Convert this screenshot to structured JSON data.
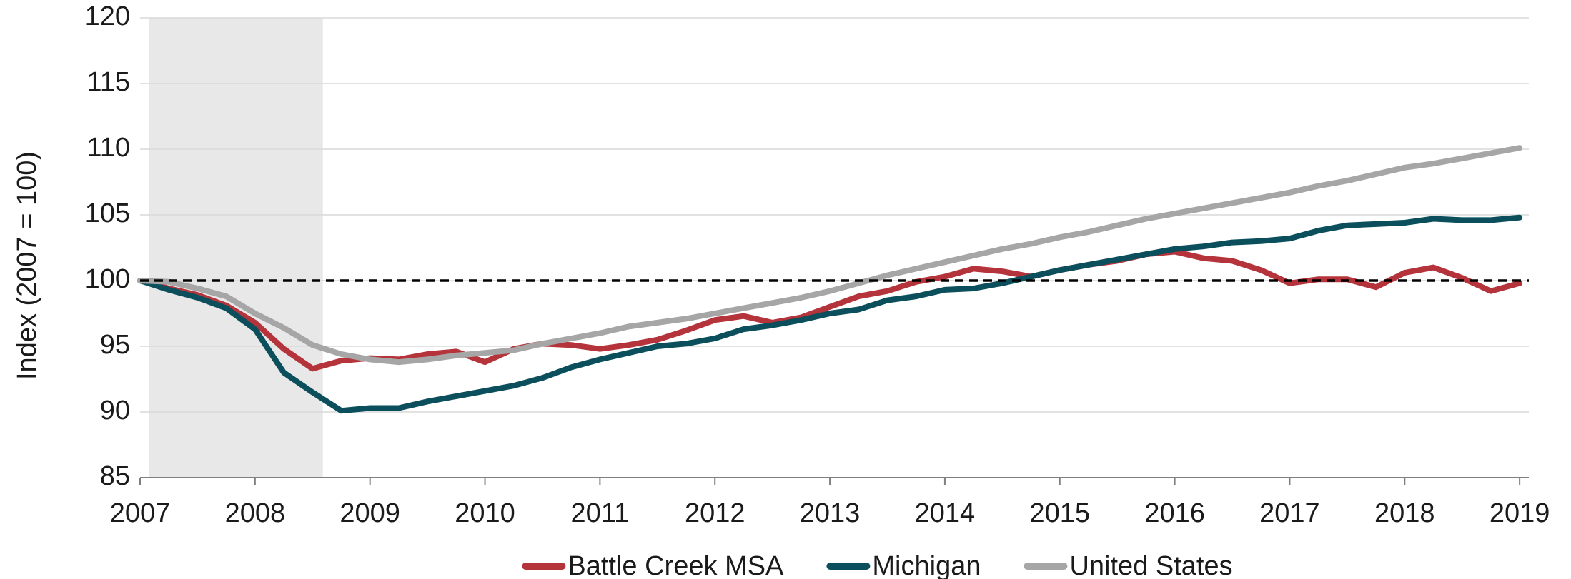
{
  "chart_data": {
    "type": "line",
    "y_label": "Index (2007 = 100)",
    "x": [
      2007,
      2007.25,
      2007.5,
      2007.75,
      2008,
      2008.25,
      2008.5,
      2008.75,
      2009,
      2009.25,
      2009.5,
      2009.75,
      2010,
      2010.25,
      2010.5,
      2010.75,
      2011,
      2011.25,
      2011.5,
      2011.75,
      2012,
      2012.25,
      2012.5,
      2012.75,
      2013,
      2013.25,
      2013.5,
      2013.75,
      2014,
      2014.25,
      2014.5,
      2014.75,
      2015,
      2015.25,
      2015.5,
      2015.75,
      2016,
      2016.25,
      2016.5,
      2016.75,
      2017,
      2017.25,
      2017.5,
      2017.75,
      2018,
      2018.25,
      2018.5,
      2018.75,
      2019
    ],
    "series": [
      {
        "name": "Battle Creek MSA",
        "color": "#b5333b",
        "values": [
          100,
          99.4,
          98.9,
          98.1,
          96.8,
          94.8,
          93.3,
          93.9,
          94.1,
          94.0,
          94.4,
          94.6,
          93.8,
          94.8,
          95.2,
          95.1,
          94.8,
          95.1,
          95.5,
          96.2,
          97.0,
          97.3,
          96.8,
          97.2,
          98.0,
          98.8,
          99.2,
          99.9,
          100.3,
          100.9,
          100.7,
          100.3,
          100.8,
          101.2,
          101.5,
          102.0,
          102.2,
          101.7,
          101.5,
          100.8,
          99.8,
          100.1,
          100.1,
          99.5,
          100.6,
          101.0,
          100.2,
          99.2,
          99.8
        ]
      },
      {
        "name": "Michigan",
        "color": "#0b4f5c",
        "values": [
          100,
          99.3,
          98.7,
          97.9,
          96.3,
          93.0,
          91.5,
          90.1,
          90.3,
          90.3,
          90.8,
          91.2,
          91.6,
          92.0,
          92.6,
          93.4,
          94.0,
          94.5,
          95.0,
          95.2,
          95.6,
          96.3,
          96.6,
          97.0,
          97.5,
          97.8,
          98.5,
          98.8,
          99.3,
          99.4,
          99.8,
          100.3,
          100.8,
          101.2,
          101.6,
          102.0,
          102.4,
          102.6,
          102.9,
          103.0,
          103.2,
          103.8,
          104.2,
          104.3,
          104.4,
          104.7,
          104.6,
          104.6,
          104.8
        ]
      },
      {
        "name": "United States",
        "color": "#a6a6a6",
        "values": [
          100,
          99.9,
          99.4,
          98.8,
          97.5,
          96.4,
          95.1,
          94.4,
          94.0,
          93.8,
          94.0,
          94.3,
          94.5,
          94.7,
          95.2,
          95.6,
          96.0,
          96.5,
          96.8,
          97.1,
          97.5,
          97.9,
          98.3,
          98.7,
          99.2,
          99.8,
          100.4,
          100.9,
          101.4,
          101.9,
          102.4,
          102.8,
          103.3,
          103.7,
          104.2,
          104.7,
          105.1,
          105.5,
          105.9,
          106.3,
          106.7,
          107.2,
          107.6,
          108.1,
          108.6,
          108.9,
          109.3,
          109.7,
          110.1
        ]
      }
    ],
    "xlim": [
      2007,
      2019.08
    ],
    "xticks": [
      2007,
      2008,
      2009,
      2010,
      2011,
      2012,
      2013,
      2014,
      2015,
      2016,
      2017,
      2018,
      2019
    ],
    "ylim": [
      85,
      120
    ],
    "yticks": [
      85,
      90,
      95,
      100,
      105,
      110,
      115,
      120
    ],
    "grid": true,
    "reference_line": 100,
    "shaded_range": [
      2007.08,
      2008.59
    ],
    "legend": "bottom"
  }
}
